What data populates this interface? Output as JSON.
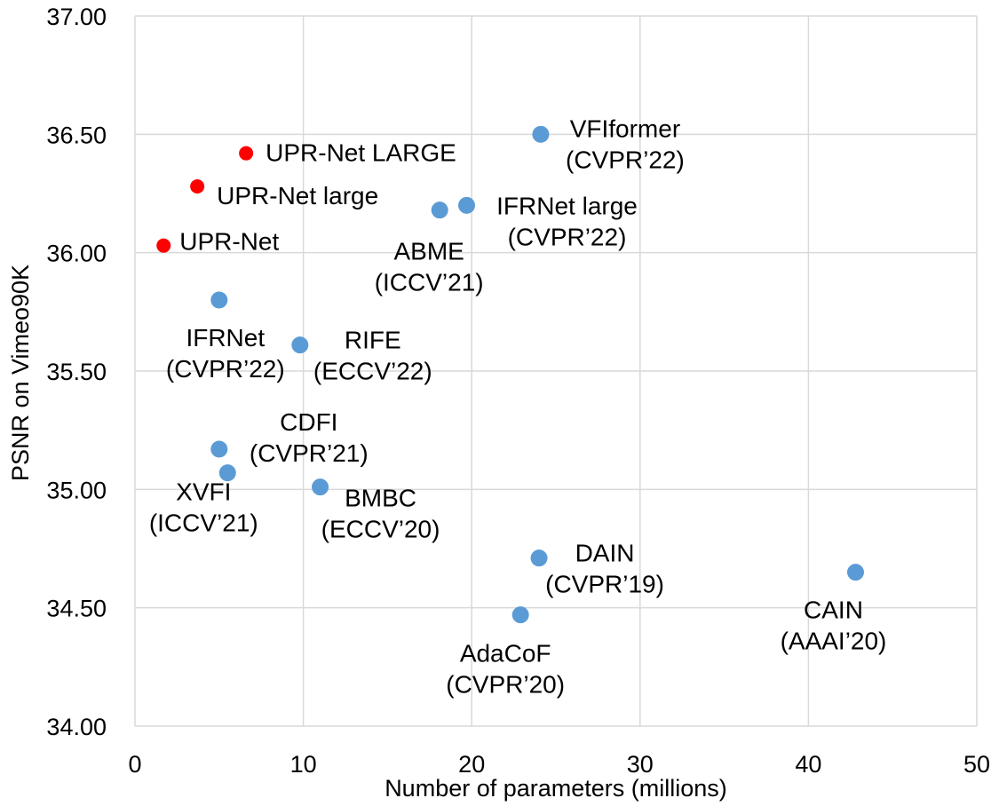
{
  "chart_data": {
    "type": "scatter",
    "title": "",
    "xlabel": "Number of parameters (millions)",
    "ylabel": "PSNR on Vimeo90K",
    "xlim": [
      0,
      50
    ],
    "ylim": [
      34.0,
      37.0
    ],
    "x_ticks": [
      "0",
      "10",
      "20",
      "30",
      "40",
      "50"
    ],
    "y_ticks": [
      "34.00",
      "34.50",
      "35.00",
      "35.50",
      "36.00",
      "36.50",
      "37.00"
    ],
    "grid": true,
    "legend": "none",
    "colors": {
      "ours": "#ff0000",
      "others": "#5b9bd5",
      "grid": "#d9d9d9"
    },
    "points": [
      {
        "x": 1.7,
        "y": 36.03,
        "group": "ours",
        "label": [
          "UPR-Net"
        ]
      },
      {
        "x": 3.7,
        "y": 36.28,
        "group": "ours",
        "label": [
          "UPR-Net large"
        ]
      },
      {
        "x": 6.6,
        "y": 36.42,
        "group": "ours",
        "label": [
          "UPR-Net LARGE"
        ]
      },
      {
        "x": 24.1,
        "y": 36.5,
        "group": "others",
        "label": [
          "VFIformer",
          "(CVPR’22)"
        ]
      },
      {
        "x": 19.7,
        "y": 36.2,
        "group": "others",
        "label": [
          "IFRNet large",
          "(CVPR’22)"
        ]
      },
      {
        "x": 18.1,
        "y": 36.18,
        "group": "others",
        "label": [
          "ABME",
          "(ICCV’21)"
        ]
      },
      {
        "x": 5.0,
        "y": 35.8,
        "group": "others",
        "label": [
          "IFRNet",
          "(CVPR’22)"
        ]
      },
      {
        "x": 9.8,
        "y": 35.61,
        "group": "others",
        "label": [
          "RIFE",
          "(ECCV’22)"
        ]
      },
      {
        "x": 5.0,
        "y": 35.17,
        "group": "others",
        "label": [
          "CDFI",
          "(CVPR’21)"
        ]
      },
      {
        "x": 5.5,
        "y": 35.07,
        "group": "others",
        "label": [
          "XVFI",
          "(ICCV’21)"
        ]
      },
      {
        "x": 11.0,
        "y": 35.01,
        "group": "others",
        "label": [
          "BMBC",
          "(ECCV’20)"
        ]
      },
      {
        "x": 24.0,
        "y": 34.71,
        "group": "others",
        "label": [
          "DAIN",
          "(CVPR’19)"
        ]
      },
      {
        "x": 22.9,
        "y": 34.47,
        "group": "others",
        "label": [
          "AdaCoF",
          "(CVPR’20)"
        ]
      },
      {
        "x": 42.8,
        "y": 34.65,
        "group": "others",
        "label": [
          "CAIN",
          "(AAAI’20)"
        ]
      }
    ]
  }
}
